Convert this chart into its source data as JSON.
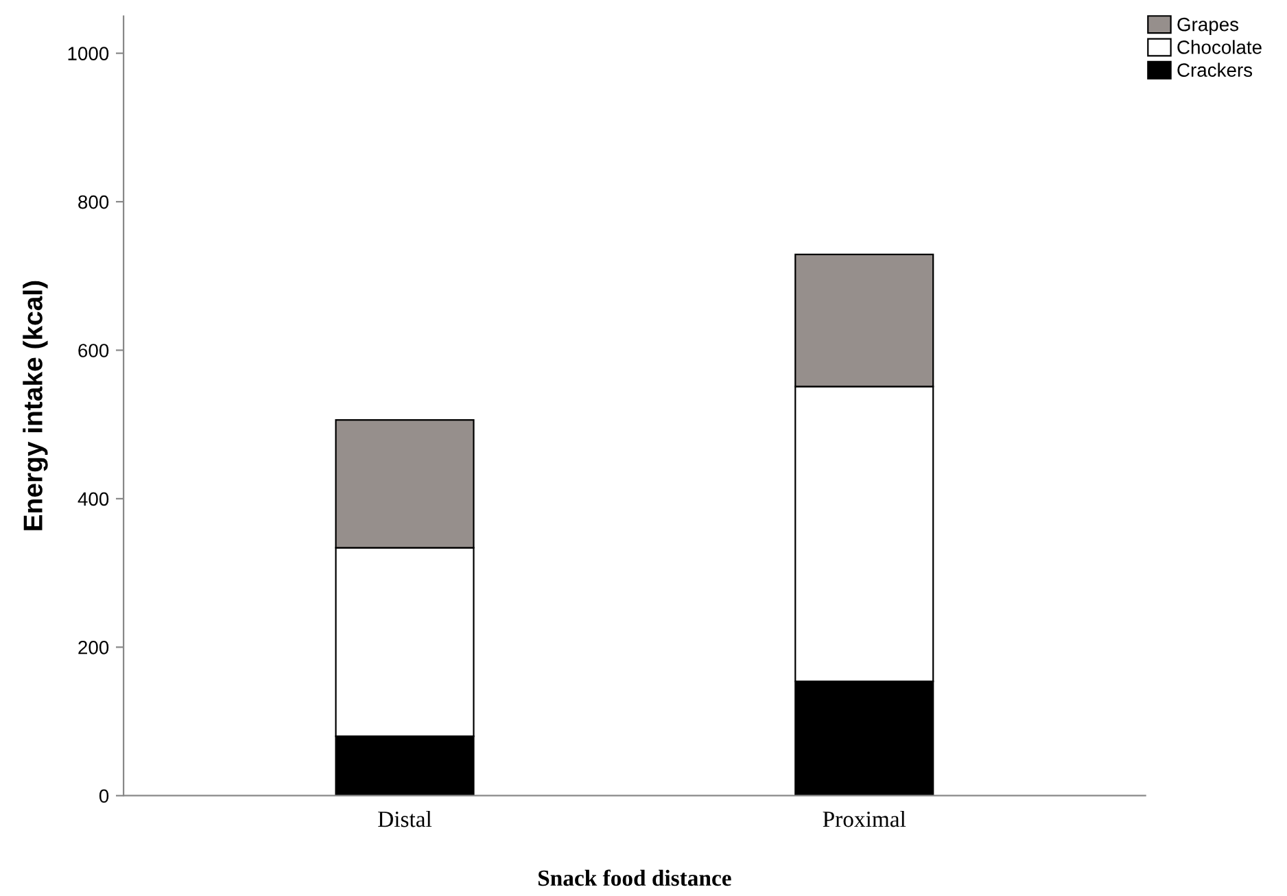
{
  "chart_data": {
    "type": "bar",
    "stacked": true,
    "xlabel": "Snack food distance",
    "ylabel": "Energy intake (kcal)",
    "categories": [
      "Distal",
      "Proximal"
    ],
    "series": [
      {
        "name": "Crackers",
        "color": "#000000",
        "values": [
          80,
          154
        ]
      },
      {
        "name": "Chocolate",
        "color": "#ffffff",
        "values": [
          254,
          397
        ]
      },
      {
        "name": "Grapes",
        "color": "#968f8c",
        "values": [
          172,
          178
        ]
      }
    ],
    "ylim": [
      0,
      1050
    ],
    "yticks": [
      0,
      200,
      400,
      600,
      800,
      1000
    ],
    "grid": false,
    "legend": "top right"
  }
}
